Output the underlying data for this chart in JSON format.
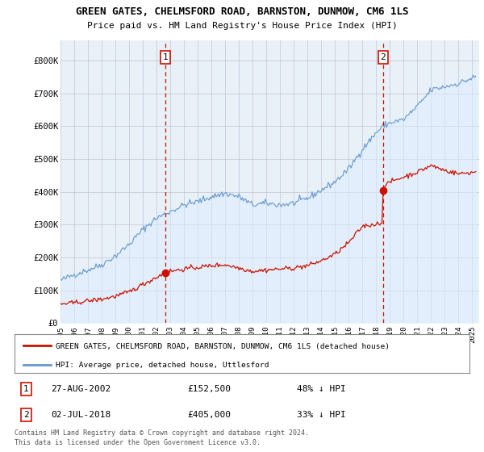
{
  "title": "GREEN GATES, CHELMSFORD ROAD, BARNSTON, DUNMOW, CM6 1LS",
  "subtitle": "Price paid vs. HM Land Registry's House Price Index (HPI)",
  "ytick_labels": [
    "£0",
    "£100K",
    "£200K",
    "£300K",
    "£400K",
    "£500K",
    "£600K",
    "£700K",
    "£800K"
  ],
  "sale1_year": 2002.65,
  "sale1_price": 152500,
  "sale2_year": 2018.5,
  "sale2_price": 405000,
  "hpi_color": "#6699cc",
  "hpi_fill": "#ddeeff",
  "price_color": "#cc1100",
  "marker_color": "#cc1100",
  "vline_color": "#cc1100",
  "legend1": "GREEN GATES, CHELMSFORD ROAD, BARNSTON, DUNMOW, CM6 1LS (detached house)",
  "legend2": "HPI: Average price, detached house, Uttlesford",
  "footer1": "Contains HM Land Registry data © Crown copyright and database right 2024.",
  "footer2": "This data is licensed under the Open Government Licence v3.0.",
  "note1_date": "27-AUG-2002",
  "note1_price": "£152,500",
  "note1_pct": "48% ↓ HPI",
  "note2_date": "02-JUL-2018",
  "note2_price": "£405,000",
  "note2_pct": "33% ↓ HPI"
}
